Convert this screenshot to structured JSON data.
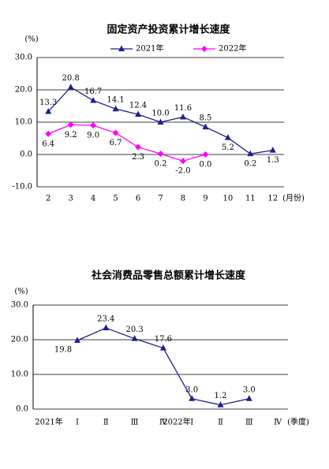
{
  "chart_data": [
    {
      "type": "line",
      "title": "固定资产投资累计增长速度",
      "y_label": "(%)",
      "x_label": "(月份)",
      "categories": [
        "2",
        "3",
        "4",
        "5",
        "6",
        "7",
        "8",
        "9",
        "10",
        "11",
        "12"
      ],
      "series": [
        {
          "name": "2021年",
          "color": "#1f1f8f",
          "marker": "triangle",
          "values": [
            13.3,
            20.8,
            16.7,
            14.1,
            12.4,
            10.0,
            11.6,
            8.5,
            5.2,
            0.2,
            1.3
          ],
          "value_labels": [
            "13.3",
            "20.8",
            "16.7",
            "14.1",
            "12.4",
            "10.0",
            "11.6",
            "8.5",
            "5.2",
            "0.2",
            "1.3"
          ]
        },
        {
          "name": "2022年",
          "color": "#ff00ff",
          "marker": "diamond",
          "values": [
            6.4,
            9.2,
            9.0,
            6.7,
            2.3,
            0.2,
            -2.0,
            0.0,
            null,
            null,
            null
          ],
          "value_labels": [
            "6.4",
            "9.2",
            "9.0",
            "6.7",
            "2.3",
            "0.2",
            "-2.0",
            "0.0",
            null,
            null,
            null
          ]
        }
      ],
      "ylim": [
        -10,
        30
      ],
      "yticks": [
        {
          "value": -10,
          "label": "-10.0"
        },
        {
          "value": 0,
          "label": "0.0"
        },
        {
          "value": 10,
          "label": "10.0"
        },
        {
          "value": 20,
          "label": "20.0"
        },
        {
          "value": 30,
          "label": "30.0"
        }
      ],
      "grid": true,
      "legend": "top"
    },
    {
      "type": "line",
      "title": "社会消费品零售总额累计增长速度",
      "y_label": "(%)",
      "x_label": "(季度)",
      "categories": [
        "Ⅰ",
        "Ⅱ",
        "Ⅲ",
        "Ⅳ",
        "Ⅰ",
        "Ⅱ",
        "Ⅲ",
        "Ⅳ"
      ],
      "year_labels": [
        "2021年",
        "2022年"
      ],
      "series": [
        {
          "color": "#1f1f8f",
          "marker": "triangle",
          "values": [
            19.8,
            23.4,
            20.3,
            17.6,
            3.0,
            1.2,
            3.0,
            null
          ],
          "value_labels": [
            "19.8",
            "23.4",
            "20.3",
            "17.6",
            "3.0",
            "1.2",
            "3.0",
            null
          ]
        }
      ],
      "ylim": [
        0,
        30
      ],
      "yticks": [
        {
          "value": 0,
          "label": "0.0"
        },
        {
          "value": 10,
          "label": "10.0"
        },
        {
          "value": 20,
          "label": "20.0"
        },
        {
          "value": 30,
          "label": "30.0"
        }
      ],
      "grid": true
    }
  ]
}
